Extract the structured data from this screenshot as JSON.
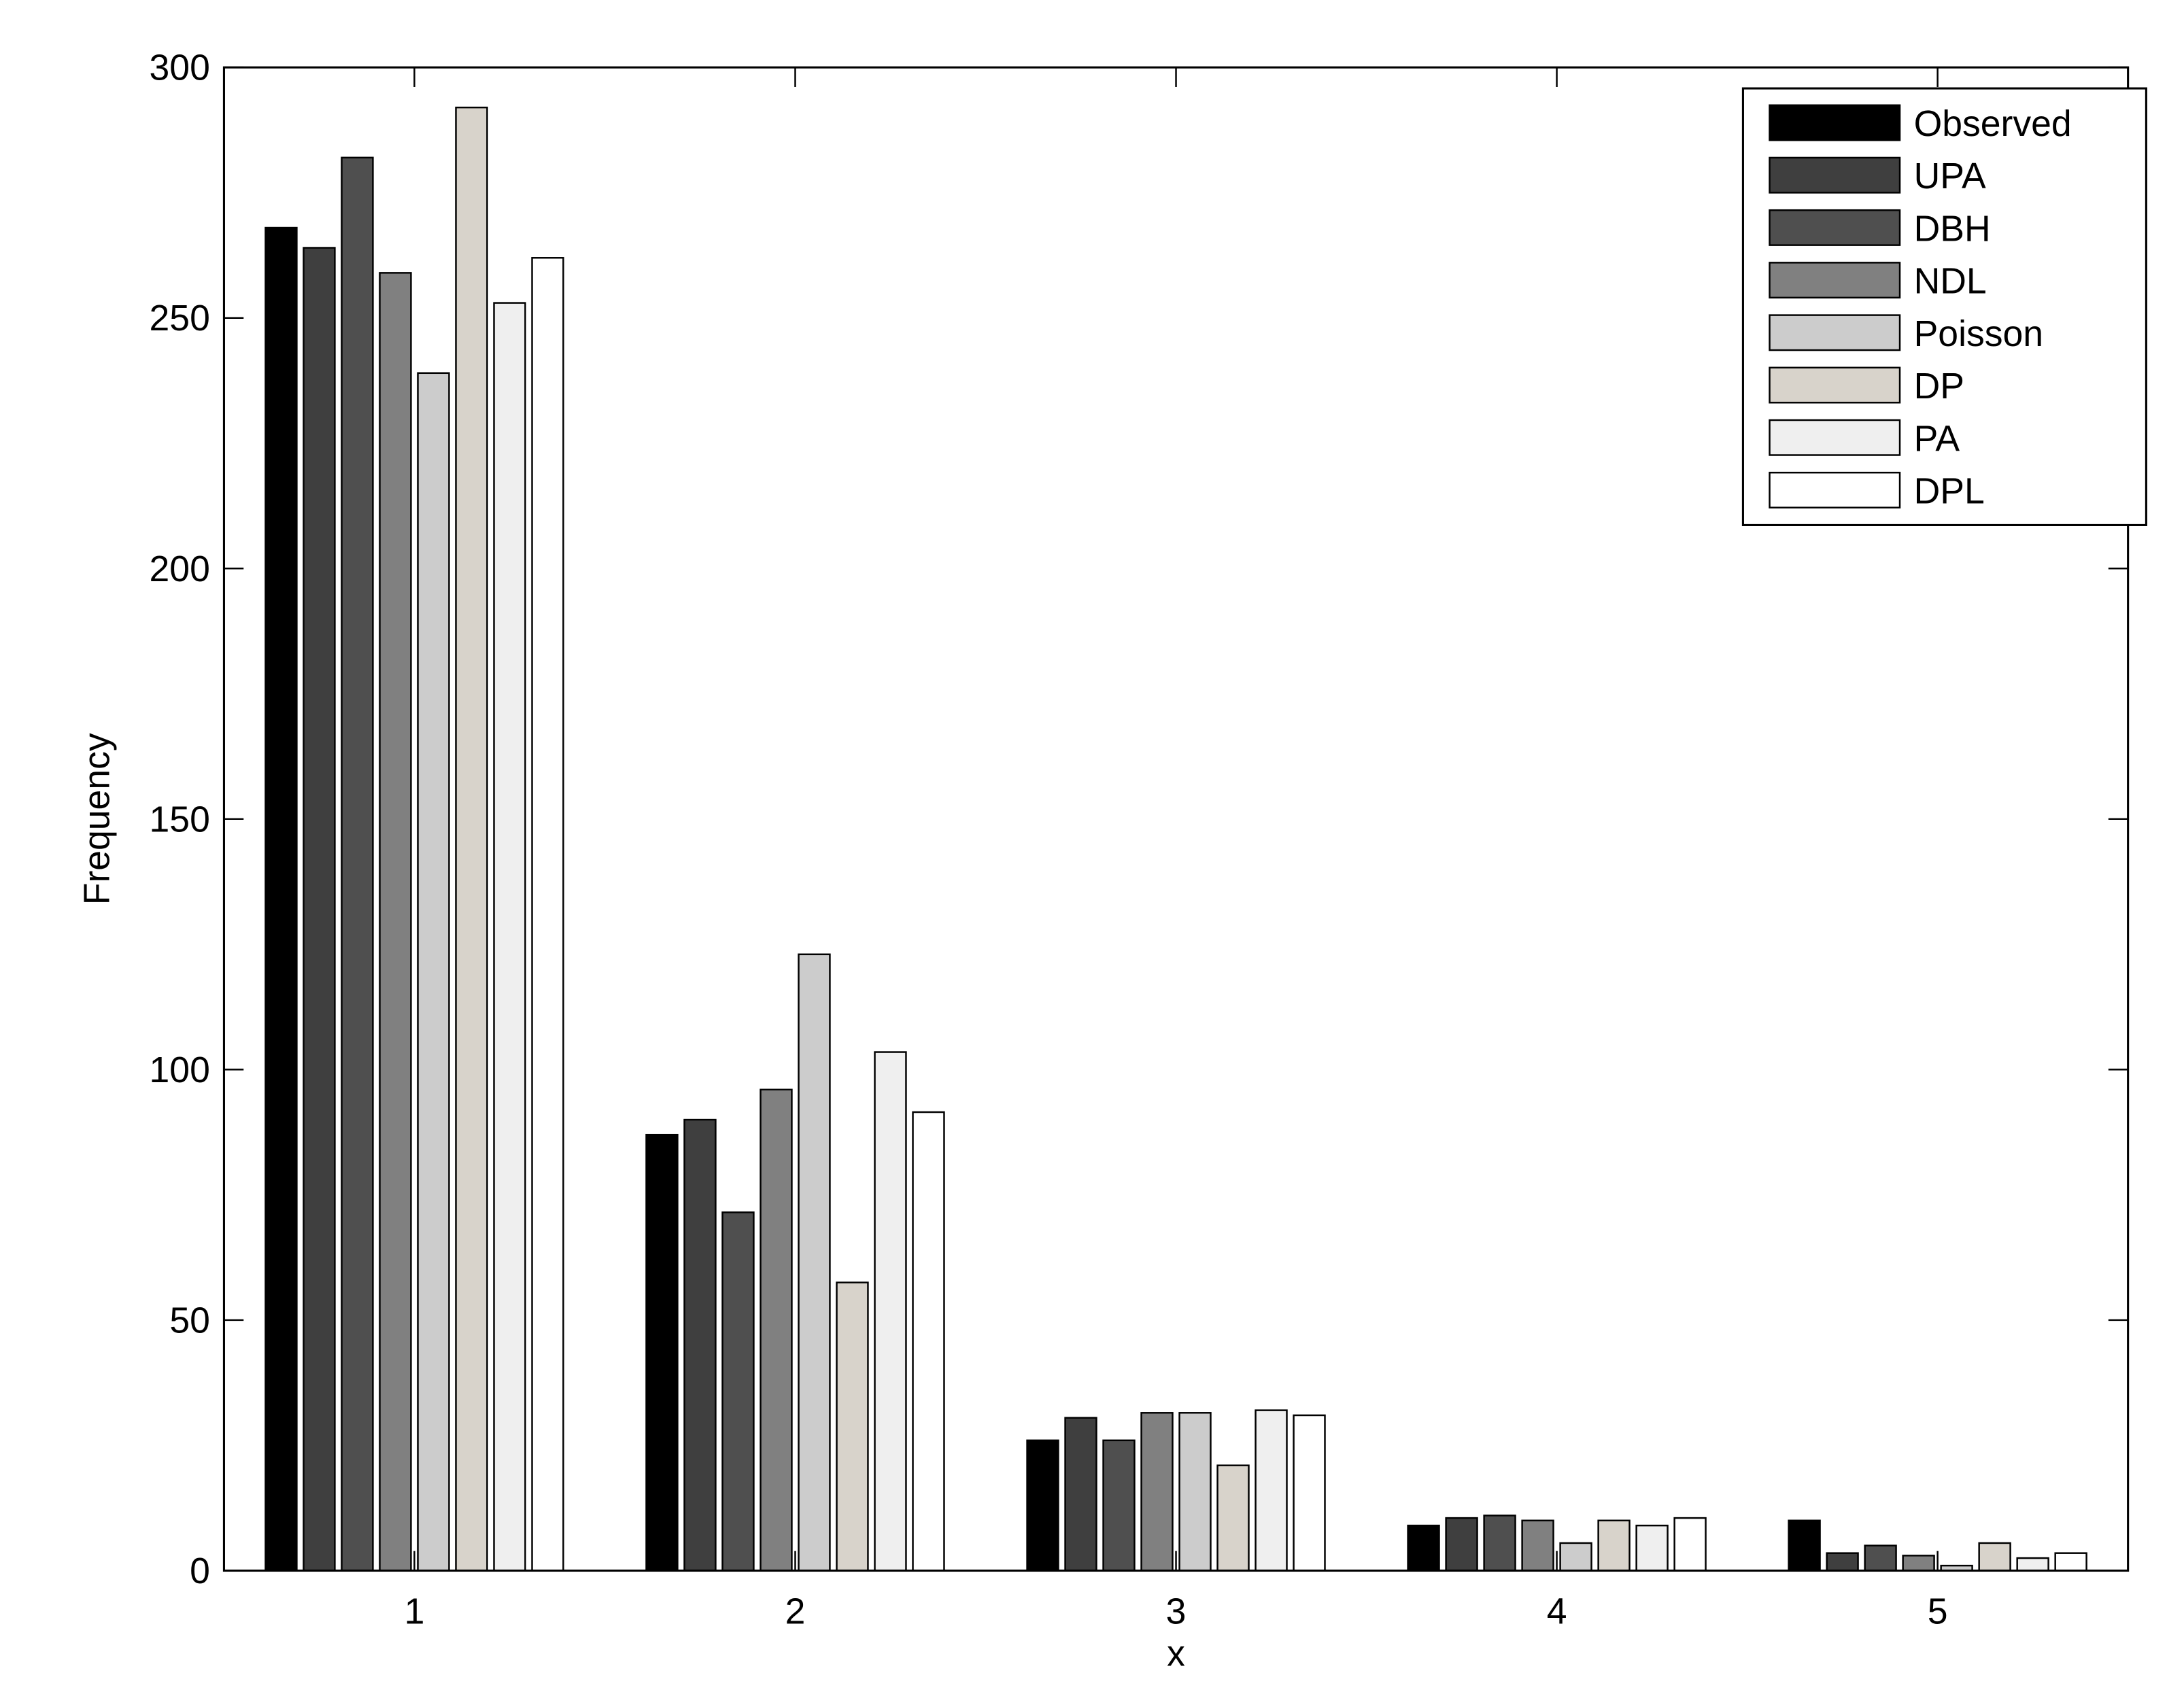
{
  "chart_data": {
    "type": "bar",
    "x_label": "x",
    "y_label": "Frequency",
    "x": [
      1,
      2,
      3,
      4,
      5
    ],
    "xlim": [
      0.5,
      5.5
    ],
    "xticks": [
      1,
      2,
      3,
      4,
      5
    ],
    "ylim": [
      0,
      300
    ],
    "yticks": [
      0,
      50,
      100,
      150,
      200,
      250,
      300
    ],
    "legend": "upper right",
    "series": [
      {
        "name": "Observed",
        "color": "#000000",
        "values": [
          268,
          87,
          26,
          9,
          10
        ]
      },
      {
        "name": "UPA",
        "color": "#3f3f3f",
        "values": [
          264,
          90,
          30.5,
          10.5,
          3.5
        ]
      },
      {
        "name": "DBH",
        "color": "#4f4f4f",
        "values": [
          282,
          71.5,
          26,
          11,
          5
        ]
      },
      {
        "name": "NDL",
        "color": "#808080",
        "values": [
          259,
          96,
          31.5,
          10,
          3
        ]
      },
      {
        "name": "Poisson",
        "color": "#cccccc",
        "values": [
          239,
          123,
          31.5,
          5.5,
          1
        ]
      },
      {
        "name": "DP",
        "color": "#d8d3cb",
        "values": [
          292,
          57.5,
          21,
          10,
          5.5
        ]
      },
      {
        "name": "PA",
        "color": "#efefef",
        "values": [
          253,
          103.5,
          32,
          9,
          2.5
        ]
      },
      {
        "name": "DPL",
        "color": "#ffffff",
        "values": [
          262,
          91.5,
          31,
          10.5,
          3.5
        ]
      }
    ]
  }
}
